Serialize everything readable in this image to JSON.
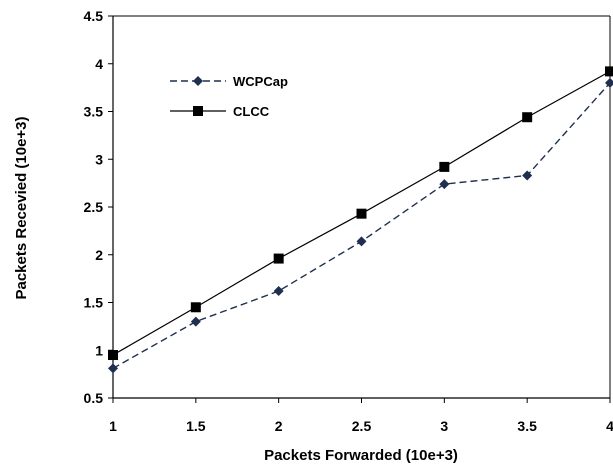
{
  "chart_data": {
    "type": "line",
    "title": "",
    "xlabel": "Packets Forwarded (10e+3)",
    "ylabel": "Packets Recevied (10e+3)",
    "x": [
      1,
      1.5,
      2,
      2.5,
      3,
      3.5,
      4
    ],
    "xlim": [
      1,
      4
    ],
    "ylim": [
      0.5,
      4.5
    ],
    "x_ticks": [
      "1",
      "1.5",
      "2",
      "2.5",
      "3",
      "3.5",
      "4"
    ],
    "y_ticks": [
      "0.5",
      "1",
      "1.5",
      "2",
      "2.5",
      "3",
      "3.5",
      "4",
      "4.5"
    ],
    "grid": false,
    "legend_position": "upper-left",
    "series": [
      {
        "name": "WCPCap",
        "values": [
          0.81,
          1.3,
          1.62,
          2.14,
          2.74,
          2.83,
          3.8
        ],
        "line_style": "dashed",
        "marker": "diamond",
        "color": "#1f2f4f"
      },
      {
        "name": "CLCC",
        "values": [
          0.95,
          1.45,
          1.96,
          2.43,
          2.92,
          3.44,
          3.92
        ],
        "line_style": "solid",
        "marker": "square",
        "color": "#000000"
      }
    ]
  }
}
